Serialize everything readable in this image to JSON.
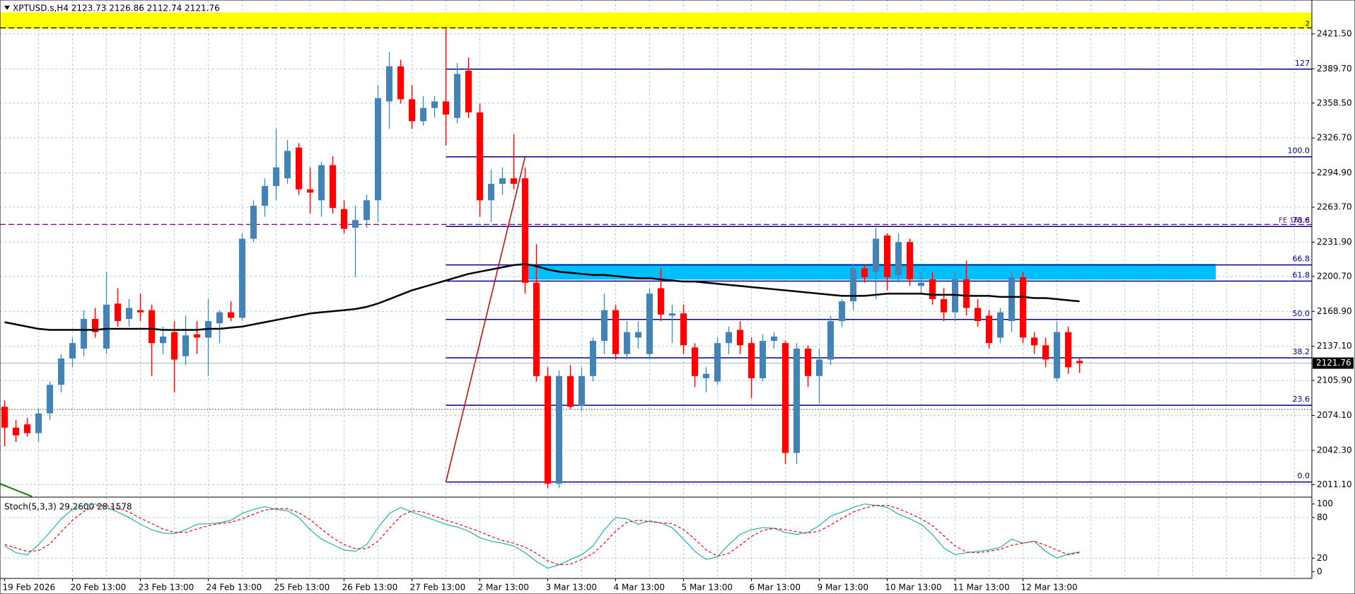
{
  "chart_data": {
    "type": "candlestick",
    "title": "XPTUSD.s,H4  2123.73 2126.86 2112.74 2121.76",
    "categories": [
      "19 Feb 2026",
      null,
      null,
      null,
      null,
      null,
      "20 Feb 13:00",
      null,
      null,
      null,
      null,
      null,
      "23 Feb 13:00",
      null,
      null,
      null,
      null,
      null,
      "24 Feb 13:00",
      null,
      null,
      null,
      null,
      null,
      "25 Feb 13:00",
      null,
      null,
      null,
      null,
      null,
      "26 Feb 13:00",
      null,
      null,
      null,
      null,
      null,
      "27 Feb 13:00",
      null,
      null,
      null,
      null,
      null,
      "2 Mar 13:00",
      null,
      null,
      null,
      null,
      null,
      "3 Mar 13:00",
      null,
      null,
      null,
      null,
      null,
      "4 Mar 13:00",
      null,
      null,
      null,
      null,
      null,
      "5 Mar 13:00",
      null,
      null,
      null,
      null,
      null,
      "6 Mar 13:00",
      null,
      null,
      null,
      null,
      null,
      "9 Mar 13:00",
      null,
      null,
      null,
      null,
      null,
      "10 Mar 13:00",
      null,
      null,
      null,
      null,
      null,
      "11 Mar 13:00",
      null,
      null,
      null,
      null,
      null,
      "12 Mar 13:00",
      null,
      null,
      null,
      null,
      null
    ],
    "open": [
      2082,
      2063,
      2066,
      2058,
      2076,
      2102,
      2126,
      2135,
      2162,
      2135,
      2176,
      2162,
      2170,
      2170,
      2140,
      2150,
      2128,
      2148,
      2145,
      2158,
      2168,
      2163,
      2235,
      2265,
      2283,
      2290,
      2318,
      2280,
      2270,
      2302,
      2262,
      2245,
      2252,
      2270,
      2360,
      2392,
      2362,
      2342,
      2354,
      2360,
      2345,
      2388,
      2350,
      2270,
      2285,
      2290,
      2290,
      2195,
      2110,
      2012,
      2110,
      2083,
      2110,
      2142,
      2170,
      2130,
      2145,
      2130,
      2190,
      2165,
      2167,
      2136,
      2108,
      2105,
      2140,
      2152,
      2140,
      2108,
      2142,
      2140,
      2040,
      2135,
      2110,
      2125,
      2160,
      2178,
      2208,
      2205,
      2238,
      2202,
      2232,
      2192,
      2198,
      2180,
      2168,
      2198,
      2172,
      2165,
      2145,
      2160,
      2200,
      2145,
      2138,
      2108,
      2150,
      2123.73
    ],
    "high": [
      2088,
      2070,
      2072,
      2080,
      2105,
      2130,
      2145,
      2170,
      2172,
      2205,
      2190,
      2180,
      2185,
      2175,
      2155,
      2160,
      2165,
      2160,
      2180,
      2170,
      2178,
      2240,
      2270,
      2290,
      2335,
      2325,
      2322,
      2300,
      2305,
      2310,
      2270,
      2265,
      2275,
      2375,
      2405,
      2398,
      2375,
      2365,
      2365,
      2428,
      2395,
      2400,
      2358,
      2298,
      2300,
      2330,
      2300,
      2230,
      2118,
      2115,
      2120,
      2118,
      2145,
      2185,
      2175,
      2160,
      2160,
      2190,
      2208,
      2175,
      2175,
      2140,
      2118,
      2145,
      2155,
      2160,
      2145,
      2148,
      2150,
      2142,
      2140,
      2138,
      2135,
      2165,
      2180,
      2212,
      2212,
      2245,
      2240,
      2240,
      2235,
      2205,
      2205,
      2190,
      2205,
      2215,
      2180,
      2170,
      2172,
      2205,
      2205,
      2150,
      2145,
      2160,
      2155,
      2126.86
    ],
    "low": [
      2046,
      2050,
      2055,
      2050,
      2070,
      2095,
      2118,
      2128,
      2145,
      2130,
      2155,
      2155,
      2160,
      2110,
      2130,
      2095,
      2120,
      2130,
      2110,
      2140,
      2160,
      2160,
      2232,
      2255,
      2270,
      2285,
      2275,
      2258,
      2255,
      2258,
      2240,
      2200,
      2245,
      2250,
      2335,
      2358,
      2335,
      2338,
      2345,
      2320,
      2340,
      2345,
      2255,
      2250,
      2275,
      2280,
      2185,
      2105,
      2008,
      2008,
      2080,
      2078,
      2105,
      2130,
      2125,
      2125,
      2135,
      2125,
      2160,
      2140,
      2130,
      2100,
      2095,
      2102,
      2130,
      2130,
      2090,
      2105,
      2135,
      2030,
      2030,
      2100,
      2085,
      2120,
      2155,
      2170,
      2195,
      2180,
      2188,
      2195,
      2192,
      2185,
      2175,
      2160,
      2160,
      2165,
      2155,
      2135,
      2140,
      2150,
      2140,
      2130,
      2118,
      2105,
      2112,
      2112.74
    ],
    "close": [
      2063,
      2056,
      2058,
      2076,
      2102,
      2126,
      2140,
      2162,
      2150,
      2175,
      2160,
      2172,
      2168,
      2140,
      2146,
      2125,
      2147,
      2145,
      2160,
      2168,
      2163,
      2235,
      2265,
      2283,
      2300,
      2315,
      2280,
      2277,
      2302,
      2263,
      2244,
      2252,
      2270,
      2363,
      2392,
      2362,
      2342,
      2354,
      2360,
      2348,
      2385,
      2350,
      2270,
      2285,
      2290,
      2285,
      2195,
      2110,
      2012,
      2110,
      2082,
      2110,
      2142,
      2170,
      2130,
      2150,
      2150,
      2185,
      2166,
      2167,
      2138,
      2110,
      2112,
      2140,
      2150,
      2138,
      2108,
      2142,
      2146,
      2040,
      2135,
      2110,
      2125,
      2160,
      2178,
      2208,
      2200,
      2235,
      2200,
      2232,
      2198,
      2195,
      2180,
      2168,
      2198,
      2172,
      2160,
      2140,
      2168,
      2200,
      2145,
      2138,
      2125,
      2150,
      2118,
      2121.76
    ],
    "up_color": "#4682b4",
    "down_color": "#ff0000",
    "ylim": [
      2001.7,
      2445.9
    ],
    "yticks": [
      {
        "value": 2421.5,
        "label": "2421.50"
      },
      {
        "value": 2389.7,
        "label": "2389.70"
      },
      {
        "value": 2358.5,
        "label": "2358.50"
      },
      {
        "value": 2326.7,
        "label": "2326.70"
      },
      {
        "value": 2294.9,
        "label": "2294.90"
      },
      {
        "value": 2263.7,
        "label": "2263.70"
      },
      {
        "value": 2231.9,
        "label": "2231.90"
      },
      {
        "value": 2200.7,
        "label": "2200.70"
      },
      {
        "value": 2168.9,
        "label": "2168.90"
      },
      {
        "value": 2137.1,
        "label": "2137.10"
      },
      {
        "value": 2105.9,
        "label": "2105.90"
      },
      {
        "value": 2074.1,
        "label": "2074.10"
      },
      {
        "value": 2042.3,
        "label": "2042.30"
      },
      {
        "value": 2011.1,
        "label": "2011.10"
      }
    ],
    "grid": true,
    "moving_average": {
      "color": "#000000",
      "values": [
        2159,
        2157,
        2155,
        2153,
        2152,
        2152,
        2152,
        2152,
        2152,
        2153,
        2153,
        2153,
        2153,
        2153,
        2152,
        2152,
        2152,
        2152,
        2153,
        2153,
        2154,
        2155,
        2157,
        2159,
        2161,
        2163,
        2165,
        2167,
        2168,
        2169,
        2170,
        2171,
        2173,
        2176,
        2180,
        2184,
        2188,
        2191,
        2194,
        2197,
        2200,
        2203,
        2205,
        2207,
        2209,
        2211,
        2212,
        2210,
        2207,
        2205,
        2204,
        2203,
        2202,
        2202,
        2201,
        2200,
        2199,
        2199,
        2198,
        2197,
        2196,
        2196,
        2195,
        2194,
        2193,
        2192,
        2191,
        2190,
        2189,
        2188,
        2187,
        2186,
        2185,
        2184,
        2183,
        2183,
        2183,
        2184,
        2185,
        2185,
        2185,
        2185,
        2184,
        2184,
        2184,
        2183,
        2183,
        2183,
        2182,
        2182,
        2182,
        2181,
        2181,
        2180,
        2179,
        2178
      ]
    },
    "fib_color": "#00008b",
    "fib_from_bar": 39,
    "fib_to_bar": 46,
    "fib_levels": [
      {
        "name": "127",
        "price": 2389.4
      },
      {
        "name": "100.0",
        "price": 2309.6
      },
      {
        "name": "78.6",
        "price": 2246.2
      },
      {
        "name": "66.8",
        "price": 2211.2
      },
      {
        "name": "61.8",
        "price": 2196.4
      },
      {
        "name": "50.0",
        "price": 2161.5
      },
      {
        "name": "38.2",
        "price": 2126.6
      },
      {
        "name": "23.6",
        "price": 2083.4
      },
      {
        "name": "0.0",
        "price": 2013.5
      }
    ],
    "zone": {
      "top": 2212,
      "bottom": 2197.8,
      "color": "#00bfff"
    },
    "band": {
      "top": 2441,
      "bottom": 2426,
      "color": "#ffff00"
    },
    "levels": [
      {
        "name": "2",
        "price": 2427,
        "color": "#000000"
      },
      {
        "name": "FE 161.8",
        "price": 2248,
        "color": "#800080"
      },
      {
        "price": 2079.6,
        "color": "#808080"
      }
    ],
    "stochastic": {
      "label": "Stoch(5,3,3) 29.2600 28.1578",
      "ylim": [
        -9,
        107
      ],
      "yticks": [
        100,
        80,
        20,
        0
      ],
      "k": {
        "color": "#20b2aa",
        "values": [
          38,
          28,
          25,
          40,
          58,
          78,
          92,
          98,
          100,
          95,
          88,
          80,
          70,
          62,
          57,
          56,
          62,
          70,
          71,
          72,
          76,
          86,
          92,
          96,
          92,
          90,
          80,
          62,
          48,
          40,
          32,
          30,
          40,
          65,
          86,
          95,
          88,
          82,
          76,
          70,
          66,
          60,
          50,
          45,
          42,
          38,
          28,
          15,
          5,
          10,
          18,
          25,
          38,
          62,
          80,
          78,
          70,
          75,
          72,
          65,
          48,
          30,
          18,
          22,
          40,
          55,
          62,
          65,
          64,
          58,
          55,
          58,
          68,
          82,
          88,
          95,
          100,
          98,
          95,
          85,
          78,
          70,
          55,
          35,
          25,
          28,
          30,
          32,
          36,
          48,
          42,
          45,
          30,
          20,
          26,
          29.26
        ]
      },
      "d": {
        "color": "#ff0000",
        "values": [
          40,
          35,
          30,
          31,
          41,
          59,
          76,
          89,
          97,
          98,
          94,
          88,
          79,
          71,
          63,
          58,
          58,
          63,
          68,
          71,
          73,
          78,
          85,
          91,
          93,
          93,
          87,
          77,
          63,
          50,
          40,
          34,
          34,
          45,
          64,
          82,
          90,
          88,
          82,
          76,
          71,
          65,
          59,
          52,
          46,
          42,
          36,
          27,
          16,
          10,
          11,
          18,
          27,
          42,
          60,
          73,
          76,
          74,
          72,
          71,
          62,
          48,
          32,
          23,
          27,
          39,
          52,
          61,
          64,
          62,
          59,
          57,
          60,
          69,
          79,
          88,
          94,
          98,
          98,
          93,
          86,
          78,
          68,
          53,
          38,
          29,
          28,
          30,
          33,
          39,
          42,
          45,
          39,
          32,
          25,
          28.1578
        ]
      }
    }
  }
}
